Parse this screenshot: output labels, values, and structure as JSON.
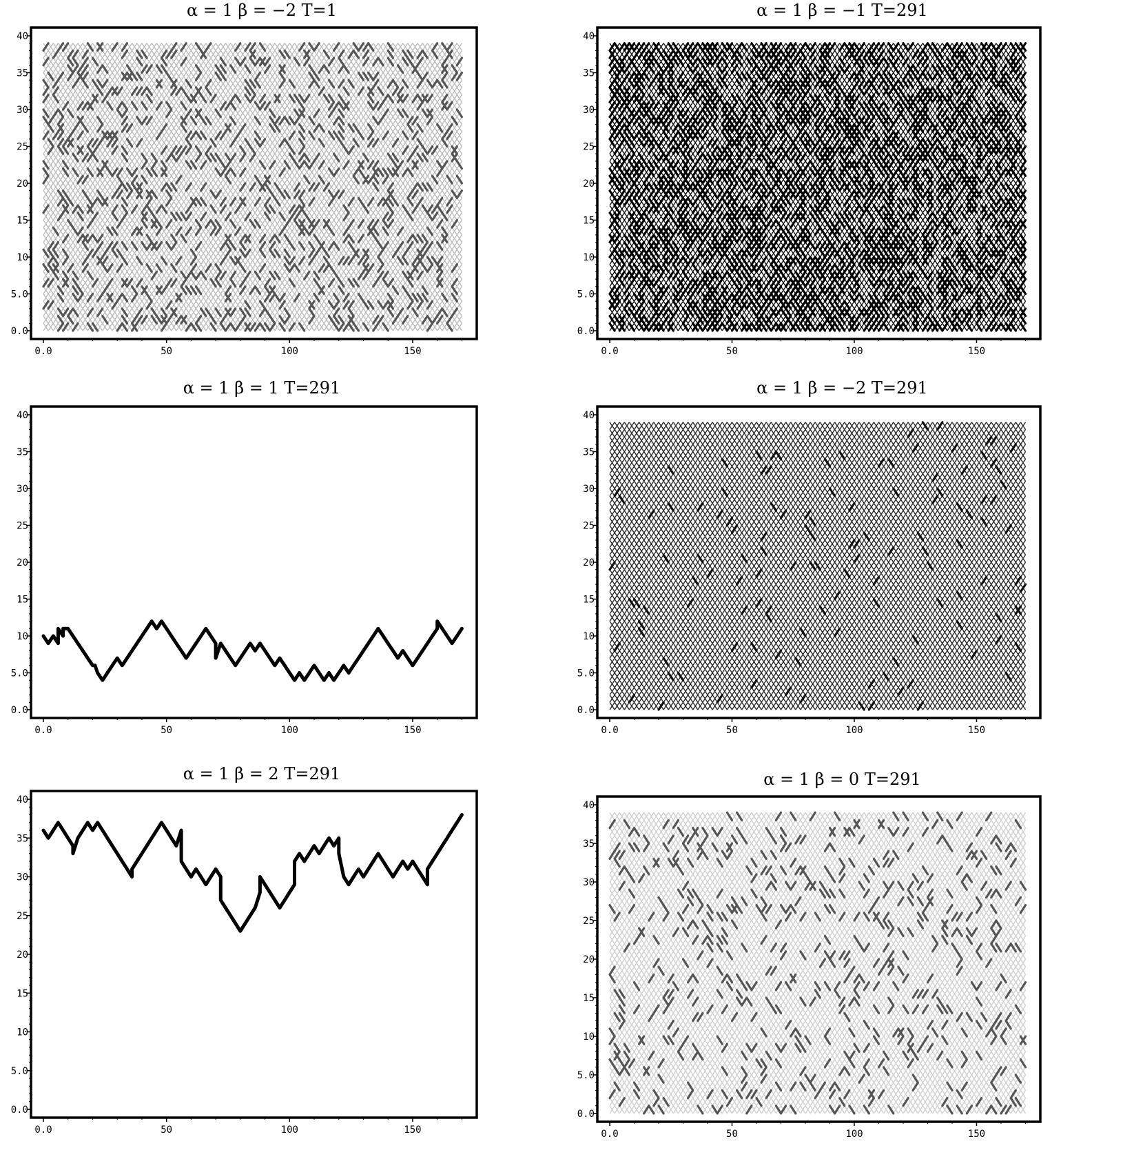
{
  "chart_data": [
    {
      "type": "line",
      "title": "α = 1 β = −2 T=1",
      "xlim": [
        0,
        171
      ],
      "ylim": [
        0,
        40
      ],
      "xticks": [
        "0.0",
        "50",
        "100",
        "150"
      ],
      "yticks": [
        "0.0",
        "5.0",
        "10",
        "15",
        "20",
        "25",
        "30",
        "35",
        "40"
      ],
      "texture": {
        "style": "lattice-mesh",
        "mesh_shade": "#bdbdbd",
        "highlight_shade": "#555555",
        "density": 0.18
      },
      "series": []
    },
    {
      "type": "line",
      "title": "α = 1 β = −1 T=291",
      "xlim": [
        0,
        171
      ],
      "ylim": [
        0,
        40
      ],
      "xticks": [
        "0.0",
        "50",
        "100",
        "150"
      ],
      "yticks": [
        "0.0",
        "5.0",
        "10",
        "15",
        "20",
        "25",
        "30",
        "35",
        "40"
      ],
      "texture": {
        "style": "lattice-mesh",
        "mesh_shade": "#111111",
        "highlight_shade": "#000000",
        "density": 0.45
      },
      "series": []
    },
    {
      "type": "line",
      "title": "α = 1 β = 1 T=291",
      "xlim": [
        0,
        171
      ],
      "ylim": [
        0,
        40
      ],
      "xticks": [
        "0.0",
        "50",
        "100",
        "150"
      ],
      "yticks": [
        "0.0",
        "5.0",
        "10",
        "15",
        "20",
        "25",
        "30",
        "35",
        "40"
      ],
      "series": [
        {
          "x": [
            0,
            2,
            4,
            6,
            6,
            8,
            8,
            10,
            12,
            14,
            16,
            18,
            20,
            21,
            22,
            24,
            26,
            28,
            30,
            32,
            34,
            36,
            38,
            40,
            42,
            44,
            46,
            48,
            50,
            52,
            54,
            56,
            58,
            60,
            62,
            64,
            66,
            68,
            70,
            70,
            72,
            74,
            76,
            78,
            80,
            82,
            84,
            86,
            88,
            90,
            92,
            94,
            96,
            98,
            100,
            102,
            104,
            106,
            108,
            110,
            112,
            114,
            116,
            118,
            120,
            122,
            124,
            126,
            128,
            130,
            132,
            134,
            136,
            138,
            140,
            142,
            144,
            146,
            148,
            150,
            152,
            154,
            156,
            158,
            160,
            160,
            162,
            164,
            166,
            168,
            170
          ],
          "y": [
            10,
            9,
            10,
            9,
            11,
            10,
            11,
            11,
            10,
            9,
            8,
            7,
            6,
            6,
            5,
            4,
            5,
            6,
            7,
            6,
            7,
            8,
            9,
            10,
            11,
            12,
            11,
            12,
            11,
            10,
            9,
            8,
            7,
            8,
            9,
            10,
            11,
            10,
            9,
            7,
            9,
            8,
            7,
            6,
            7,
            8,
            9,
            8,
            9,
            8,
            7,
            6,
            7,
            6,
            5,
            4,
            5,
            4,
            5,
            6,
            5,
            4,
            5,
            4,
            5,
            6,
            5,
            6,
            7,
            8,
            9,
            10,
            11,
            10,
            9,
            8,
            7,
            8,
            7,
            6,
            7,
            8,
            9,
            10,
            11,
            12,
            11,
            10,
            9,
            10,
            11
          ]
        }
      ]
    },
    {
      "type": "line",
      "title": "α = 1 β = −2 T=291",
      "xlim": [
        0,
        171
      ],
      "ylim": [
        0,
        40
      ],
      "xticks": [
        "0.0",
        "50",
        "100",
        "150"
      ],
      "yticks": [
        "0.0",
        "5.0",
        "10",
        "15",
        "20",
        "25",
        "30",
        "35",
        "40"
      ],
      "texture": {
        "style": "lattice-mesh",
        "mesh_shade": "#2a2a2a",
        "highlight_shade": "#111111",
        "density": 0.02
      },
      "series": []
    },
    {
      "type": "line",
      "title": "α = 1 β = 2 T=291",
      "xlim": [
        0,
        171
      ],
      "ylim": [
        0,
        40
      ],
      "xticks": [
        "0.0",
        "50",
        "100",
        "150"
      ],
      "yticks": [
        "0.0",
        "5.0",
        "10",
        "15",
        "20",
        "25",
        "30",
        "35",
        "40"
      ],
      "series": [
        {
          "x": [
            0,
            2,
            4,
            6,
            8,
            10,
            12,
            12,
            14,
            16,
            18,
            20,
            22,
            24,
            26,
            28,
            30,
            32,
            34,
            36,
            36,
            38,
            40,
            42,
            44,
            46,
            48,
            50,
            52,
            54,
            56,
            56,
            58,
            60,
            62,
            64,
            66,
            68,
            70,
            72,
            72,
            74,
            76,
            78,
            80,
            82,
            84,
            86,
            87,
            88,
            88,
            90,
            92,
            94,
            96,
            98,
            100,
            102,
            102,
            104,
            106,
            108,
            110,
            112,
            114,
            116,
            118,
            120,
            120,
            122,
            124,
            126,
            128,
            130,
            132,
            134,
            136,
            138,
            140,
            142,
            144,
            146,
            148,
            150,
            152,
            154,
            156,
            156,
            158,
            160,
            162,
            164,
            166,
            168,
            170
          ],
          "y": [
            36,
            35,
            36,
            37,
            36,
            35,
            34,
            33,
            35,
            36,
            37,
            36,
            37,
            36,
            35,
            34,
            33,
            32,
            31,
            30,
            31,
            32,
            33,
            34,
            35,
            36,
            37,
            36,
            35,
            34,
            36,
            32,
            31,
            30,
            31,
            30,
            29,
            30,
            31,
            30,
            27,
            26,
            25,
            24,
            23,
            24,
            25,
            26,
            27,
            28,
            30,
            29,
            28,
            27,
            26,
            27,
            28,
            29,
            32,
            33,
            32,
            33,
            34,
            33,
            34,
            35,
            34,
            35,
            33,
            30,
            29,
            30,
            31,
            30,
            31,
            32,
            33,
            32,
            31,
            30,
            31,
            32,
            31,
            32,
            31,
            30,
            29,
            31,
            32,
            33,
            34,
            35,
            36,
            37,
            38
          ]
        }
      ]
    },
    {
      "type": "line",
      "title": "α = 1 β = 0 T=291",
      "xlim": [
        0,
        171
      ],
      "ylim": [
        0,
        40
      ],
      "xticks": [
        "0.0",
        "50",
        "100",
        "150"
      ],
      "yticks": [
        "0.0",
        "5.0",
        "10",
        "15",
        "20",
        "25",
        "30",
        "35",
        "40"
      ],
      "texture": {
        "style": "lattice-mesh",
        "mesh_shade": "#d0d0d0",
        "highlight_shade": "#555555",
        "density": 0.1
      },
      "series": []
    }
  ]
}
